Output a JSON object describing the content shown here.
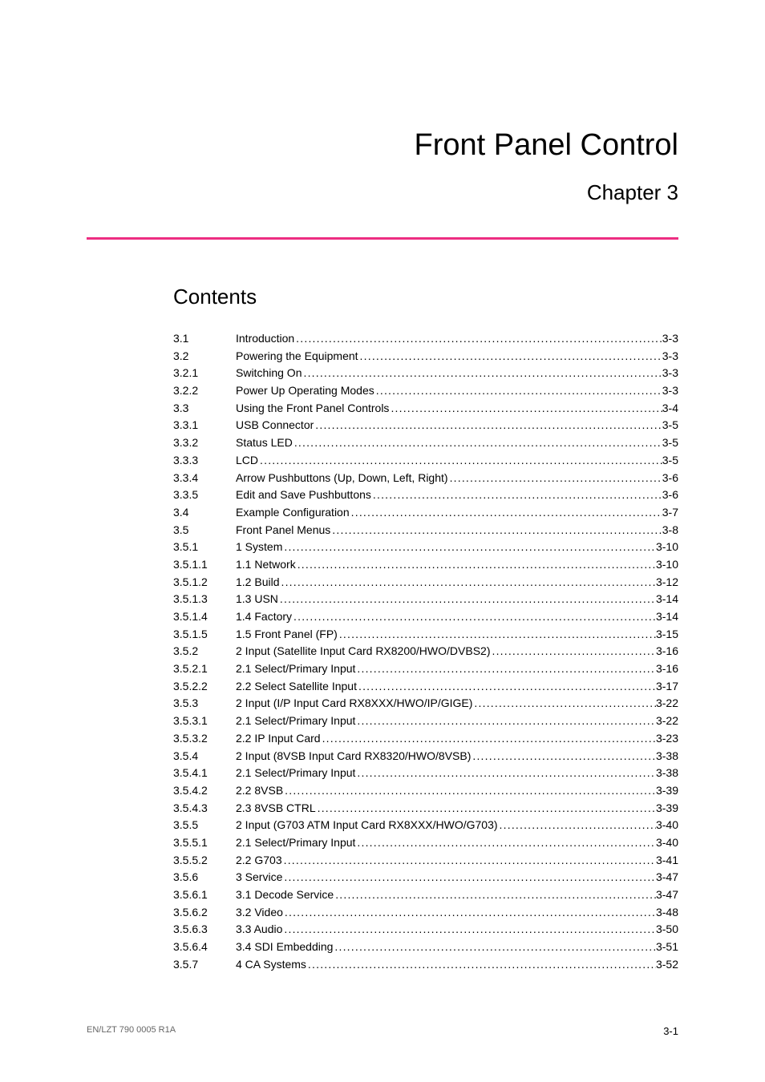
{
  "page_title": "Front Panel Control",
  "chapter_label": "Chapter 3",
  "contents_heading": "Contents",
  "colors": {
    "separator": "#ed2e82",
    "text": "#000000",
    "footer_muted": "#666666",
    "background": "#ffffff"
  },
  "typography": {
    "title_fontsize": 38,
    "chapter_fontsize": 26,
    "heading_fontsize": 26,
    "body_fontsize": 14,
    "footer_fontsize": 11,
    "font_family": "Arial"
  },
  "toc": [
    {
      "num": "3.1",
      "title": "Introduction",
      "page": "3-3"
    },
    {
      "num": "3.2",
      "title": "Powering the Equipment",
      "page": "3-3"
    },
    {
      "num": "3.2.1",
      "title": "Switching On",
      "page": "3-3"
    },
    {
      "num": "3.2.2",
      "title": "Power Up Operating Modes",
      "page": "3-3"
    },
    {
      "num": "3.3",
      "title": "Using the Front Panel Controls",
      "page": "3-4"
    },
    {
      "num": "3.3.1",
      "title": "USB Connector",
      "page": "3-5"
    },
    {
      "num": "3.3.2",
      "title": "Status LED",
      "page": "3-5"
    },
    {
      "num": "3.3.3",
      "title": "LCD",
      "page": "3-5"
    },
    {
      "num": "3.3.4",
      "title": "Arrow Pushbuttons (Up, Down, Left, Right)",
      "page": "3-6"
    },
    {
      "num": "3.3.5",
      "title": "Edit and Save Pushbuttons",
      "page": "3-6"
    },
    {
      "num": "3.4",
      "title": "Example Configuration",
      "page": "3-7"
    },
    {
      "num": "3.5",
      "title": "Front Panel Menus",
      "page": "3-8"
    },
    {
      "num": "3.5.1",
      "title": "1 System",
      "page": "3-10"
    },
    {
      "num": "3.5.1.1",
      "title": "1.1 Network",
      "page": "3-10"
    },
    {
      "num": "3.5.1.2",
      "title": "1.2 Build",
      "page": "3-12"
    },
    {
      "num": "3.5.1.3",
      "title": "1.3 USN",
      "page": "3-14"
    },
    {
      "num": "3.5.1.4",
      "title": "1.4 Factory",
      "page": "3-14"
    },
    {
      "num": "3.5.1.5",
      "title": "1.5 Front Panel (FP)",
      "page": "3-15"
    },
    {
      "num": "3.5.2",
      "title": "2 Input (Satellite Input Card RX8200/HWO/DVBS2)",
      "page": "3-16"
    },
    {
      "num": "3.5.2.1",
      "title": "2.1 Select/Primary Input",
      "page": "3-16"
    },
    {
      "num": "3.5.2.2",
      "title": "2.2 Select Satellite Input",
      "page": "3-17"
    },
    {
      "num": "3.5.3",
      "title": "2 Input (I/P Input Card RX8XXX/HWO/IP/GIGE)",
      "page": "3-22"
    },
    {
      "num": "3.5.3.1",
      "title": "2.1 Select/Primary Input",
      "page": "3-22"
    },
    {
      "num": "3.5.3.2",
      "title": "2.2 IP Input Card",
      "page": "3-23"
    },
    {
      "num": "3.5.4",
      "title": "2 Input (8VSB Input Card RX8320/HWO/8VSB)",
      "page": "3-38"
    },
    {
      "num": "3.5.4.1",
      "title": "2.1 Select/Primary Input",
      "page": "3-38"
    },
    {
      "num": "3.5.4.2",
      "title": "2.2 8VSB",
      "page": "3-39"
    },
    {
      "num": "3.5.4.3",
      "title": "2.3 8VSB CTRL",
      "page": "3-39"
    },
    {
      "num": "3.5.5",
      "title": "2 Input (G703 ATM Input Card RX8XXX/HWO/G703)",
      "page": "3-40"
    },
    {
      "num": "3.5.5.1",
      "title": "2.1 Select/Primary Input",
      "page": "3-40"
    },
    {
      "num": "3.5.5.2",
      "title": "2.2 G703",
      "page": "3-41"
    },
    {
      "num": "3.5.6",
      "title": "3 Service",
      "page": "3-47"
    },
    {
      "num": "3.5.6.1",
      "title": "3.1 Decode Service",
      "page": "3-47"
    },
    {
      "num": "3.5.6.2",
      "title": "3.2 Video",
      "page": "3-48"
    },
    {
      "num": "3.5.6.3",
      "title": "3.3 Audio",
      "page": "3-50"
    },
    {
      "num": "3.5.6.4",
      "title": "3.4 SDI Embedding",
      "page": "3-51"
    },
    {
      "num": "3.5.7",
      "title": "4 CA Systems",
      "page": "3-52"
    }
  ],
  "footer": {
    "left": "EN/LZT 790 0005 R1A",
    "right": "3-1"
  }
}
